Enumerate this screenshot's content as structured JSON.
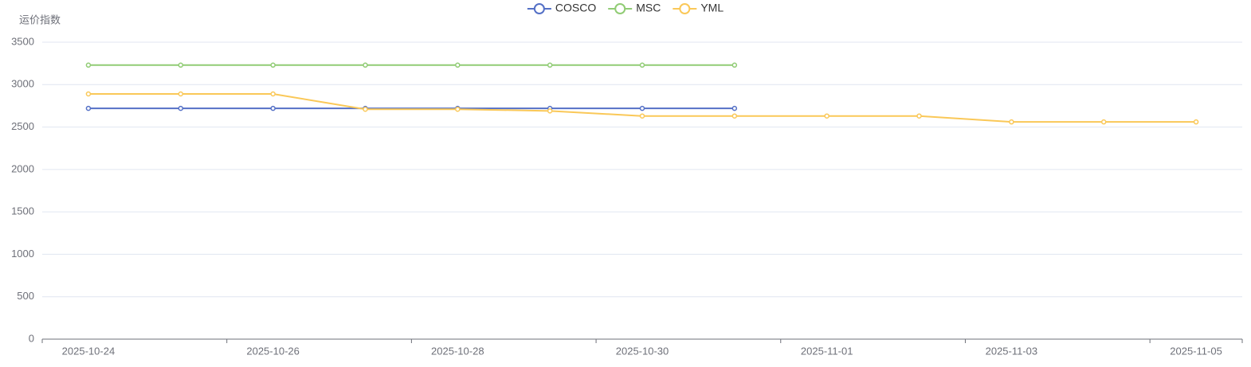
{
  "chart_data": {
    "type": "line",
    "y_axis_label": "运价指数",
    "categories": [
      "2025-10-24",
      null,
      "2025-10-26",
      null,
      "2025-10-28",
      null,
      "2025-10-30",
      null,
      "2025-11-01",
      null,
      "2025-11-03",
      null,
      "2025-11-05"
    ],
    "series": [
      {
        "name": "COSCO",
        "color": "#5470c6",
        "values": [
          2720,
          2720,
          2720,
          2720,
          2720,
          2720,
          2720,
          2720,
          null,
          null,
          null,
          null,
          null
        ]
      },
      {
        "name": "MSC",
        "color": "#91cc75",
        "values": [
          3230,
          3230,
          3230,
          3230,
          3230,
          3230,
          3230,
          3230,
          null,
          null,
          null,
          null,
          null
        ]
      },
      {
        "name": "YML",
        "color": "#fac858",
        "values": [
          2890,
          2890,
          2890,
          2710,
          2710,
          2690,
          2630,
          2630,
          2630,
          2630,
          2560,
          2560,
          2560
        ]
      }
    ],
    "ylim": [
      0,
      3500
    ],
    "yticks": [
      0,
      500,
      1000,
      1500,
      2000,
      2500,
      3000,
      3500
    ],
    "grid": true,
    "legend": "top"
  }
}
